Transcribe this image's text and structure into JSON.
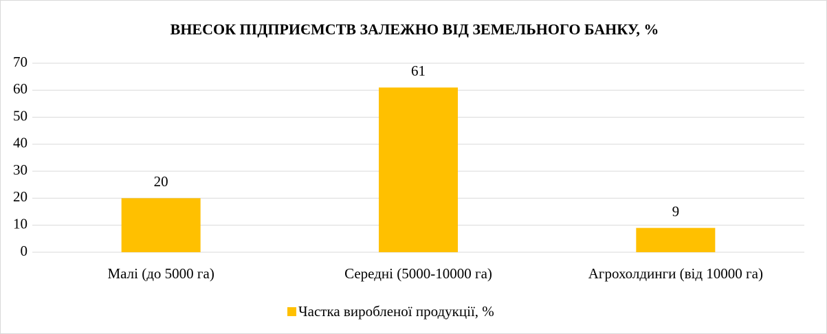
{
  "chart_data": {
    "type": "bar",
    "title": "ВНЕСОК ПІДПРИЄМСТВ ЗАЛЕЖНО ВІД ЗЕМЕЛЬНОГО БАНКУ,  %",
    "categories": [
      "Малі (до 5000 га)",
      "Середні (5000-10000 га)",
      "Агрохолдинги (від 10000 га)"
    ],
    "series": [
      {
        "name": "Частка виробленої продукції, %",
        "color": "#ffc000",
        "values": [
          20,
          61,
          9
        ]
      }
    ],
    "ylim": [
      0,
      70
    ],
    "yticks": [
      0,
      10,
      20,
      30,
      40,
      50,
      60,
      70
    ],
    "grid": true,
    "legend": "bottom"
  }
}
